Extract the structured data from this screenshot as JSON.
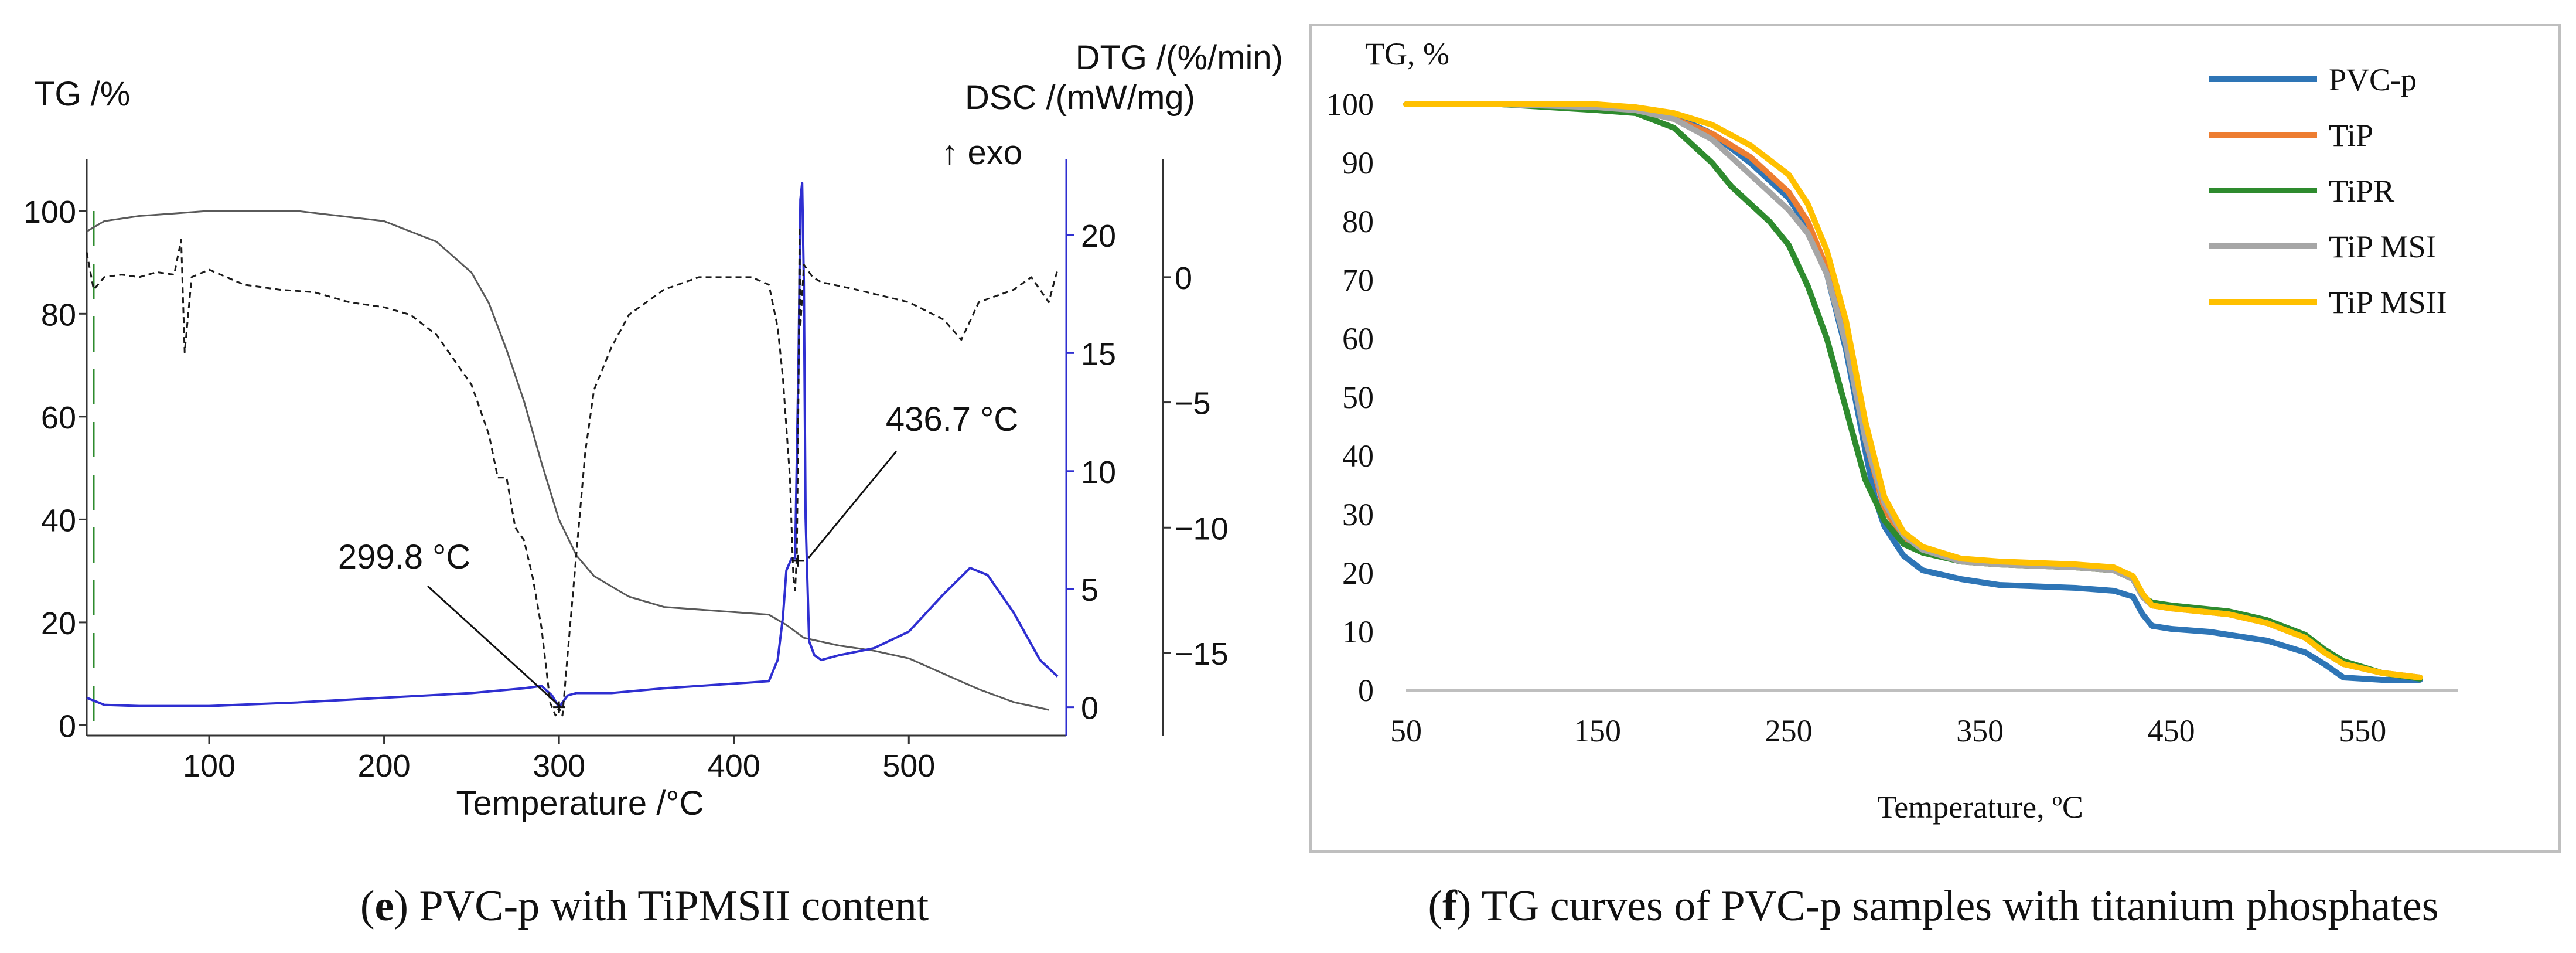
{
  "chart_data": [
    {
      "panel": "e",
      "type": "line",
      "title": "",
      "caption": {
        "letter": "e",
        "text": "PVC-p with TiPMSII content"
      },
      "xlabel": "Temperature /°C",
      "xlim": [
        30,
        590
      ],
      "xticks": [
        100,
        200,
        300,
        400,
        500
      ],
      "axes": {
        "tg": {
          "label": "TG /%",
          "lim": [
            -2,
            110
          ],
          "ticks": [
            0,
            20,
            40,
            60,
            80,
            100
          ]
        },
        "dsc": {
          "label": "DSC /(mW/mg)",
          "exo_label": "↑ exo",
          "lim": [
            -1.2,
            23.2
          ],
          "ticks": [
            0,
            5,
            10,
            15,
            20
          ]
        },
        "dtg": {
          "label": "DTG /(%/min)",
          "lim": [
            -18.3,
            4.7
          ],
          "ticks": [
            0,
            -5,
            -10,
            -15
          ]
        }
      },
      "series": [
        {
          "name": "TG",
          "axis": "tg",
          "color": "#5a5a5a",
          "dash": "",
          "x": [
            30,
            40,
            60,
            80,
            100,
            150,
            200,
            230,
            250,
            260,
            270,
            280,
            290,
            300,
            310,
            320,
            330,
            340,
            360,
            400,
            420,
            430,
            440,
            460,
            480,
            500,
            520,
            540,
            560,
            580
          ],
          "y": [
            96,
            98,
            99,
            99.5,
            100,
            100,
            98,
            94,
            88,
            82,
            73,
            63,
            51,
            40,
            33,
            29,
            27,
            25,
            23,
            22,
            21.5,
            19.5,
            17,
            15.5,
            14.5,
            13,
            10,
            7,
            4.5,
            3
          ]
        },
        {
          "name": "DSC",
          "axis": "dsc",
          "color": "#2f2fd1",
          "dash": "",
          "x": [
            30,
            40,
            60,
            100,
            150,
            200,
            250,
            280,
            290,
            296,
            300,
            305,
            310,
            330,
            360,
            400,
            420,
            425,
            428,
            430,
            433,
            435,
            437,
            438,
            439,
            440,
            441,
            443,
            446,
            450,
            460,
            480,
            500,
            520,
            535,
            545,
            560,
            575,
            585
          ],
          "y": [
            0.4,
            0.1,
            0.05,
            0.05,
            0.2,
            0.4,
            0.6,
            0.8,
            0.9,
            0.5,
            0.0,
            0.5,
            0.6,
            0.6,
            0.8,
            1.0,
            1.1,
            2.0,
            3.8,
            5.8,
            6.3,
            6.3,
            15,
            21.5,
            22.2,
            18,
            8,
            2.8,
            2.2,
            2.0,
            2.2,
            2.5,
            3.2,
            4.8,
            5.9,
            5.6,
            4.0,
            2.0,
            1.3
          ]
        },
        {
          "name": "DTG",
          "axis": "dtg",
          "color": "#1a1a1a",
          "dash": "10 7",
          "x": [
            30,
            34,
            40,
            50,
            60,
            70,
            80,
            84,
            86,
            90,
            100,
            120,
            140,
            160,
            180,
            200,
            215,
            230,
            240,
            250,
            260,
            265,
            270,
            275,
            280,
            285,
            290,
            295,
            298,
            300,
            302,
            305,
            310,
            315,
            320,
            330,
            340,
            360,
            380,
            400,
            410,
            420,
            425,
            428,
            430,
            432,
            433,
            434,
            435,
            436,
            437,
            437.5,
            438,
            440,
            445,
            450,
            470,
            500,
            520,
            530,
            540,
            560,
            570,
            580,
            585
          ],
          "y": [
            1,
            -0.5,
            0,
            0.1,
            0,
            0.2,
            0.1,
            1.5,
            -3,
            0,
            0.3,
            -0.3,
            -0.5,
            -0.6,
            -1,
            -1.2,
            -1.5,
            -2.3,
            -3.3,
            -4.3,
            -6.3,
            -8,
            -8,
            -10,
            -10.5,
            -12,
            -14,
            -17,
            -17.5,
            -17.2,
            -17.5,
            -15,
            -11,
            -7,
            -4.5,
            -2.8,
            -1.5,
            -0.5,
            0,
            0,
            0,
            -0.3,
            -2,
            -4,
            -6,
            -8,
            -10,
            -12,
            -12.5,
            -11,
            -4,
            2.0,
            -2,
            0.5,
            0,
            -0.2,
            -0.5,
            -1,
            -1.7,
            -2.5,
            -1,
            -0.5,
            0,
            -1,
            0.3
          ]
        }
      ],
      "annotations": [
        {
          "text": "299.8 °C",
          "x": 300,
          "axis": "dsc",
          "y": 0.0
        },
        {
          "text": "436.7 °C",
          "x": 436.7,
          "axis": "dsc",
          "y": 6.2
        }
      ]
    },
    {
      "panel": "f",
      "type": "line",
      "title": "",
      "caption": {
        "letter": "f",
        "text": "TG curves of PVC-p samples with titanium phosphates"
      },
      "xlabel": "Temperature, ºC",
      "ylabel": "TG, %",
      "xlim": [
        50,
        600
      ],
      "xticks": [
        50,
        150,
        250,
        350,
        450,
        550
      ],
      "ylim": [
        0,
        100
      ],
      "yticks": [
        0,
        10,
        20,
        30,
        40,
        50,
        60,
        70,
        80,
        90,
        100
      ],
      "grid": false,
      "legend_position": "top-right",
      "series": [
        {
          "name": "PVC-p",
          "color": "#2e75b6",
          "x": [
            50,
            100,
            150,
            170,
            190,
            210,
            230,
            250,
            260,
            270,
            280,
            290,
            295,
            300,
            310,
            320,
            340,
            360,
            400,
            420,
            430,
            435,
            440,
            450,
            470,
            500,
            520,
            530,
            540,
            560,
            580
          ],
          "y": [
            100,
            100,
            99.5,
            99,
            98,
            95,
            90,
            84,
            79,
            71,
            58,
            41,
            33,
            28,
            23,
            20.5,
            19,
            18,
            17.5,
            17,
            16,
            13,
            11,
            10.5,
            10,
            8.5,
            6.5,
            4.5,
            2.2,
            1.8,
            1.8
          ]
        },
        {
          "name": "TiP",
          "color": "#ed7d31",
          "x": [
            50,
            100,
            150,
            170,
            190,
            210,
            230,
            250,
            260,
            270,
            280,
            290,
            300,
            310,
            320,
            340,
            360,
            400,
            420,
            430,
            435,
            440,
            450,
            480,
            500,
            520,
            530,
            540,
            560,
            580
          ],
          "y": [
            100,
            100,
            99.5,
            99,
            97.5,
            95,
            91,
            85,
            80,
            72,
            60,
            43,
            31,
            26,
            24,
            22,
            21.5,
            21,
            20.5,
            19,
            16,
            14.5,
            14,
            13,
            11.5,
            9,
            6.5,
            4.5,
            3,
            2.2
          ]
        },
        {
          "name": "TiPR",
          "color": "#2e8b2e",
          "x": [
            50,
            100,
            150,
            170,
            190,
            210,
            220,
            230,
            240,
            250,
            260,
            270,
            280,
            290,
            300,
            310,
            320,
            340,
            360,
            400,
            420,
            430,
            435,
            440,
            450,
            480,
            500,
            520,
            530,
            540,
            560,
            580
          ],
          "y": [
            100,
            100,
            99,
            98.5,
            96,
            90,
            86,
            83,
            80,
            76,
            69,
            60,
            48,
            36,
            29,
            25,
            23.5,
            22,
            21.5,
            21,
            20.5,
            19,
            16,
            15,
            14.5,
            13.5,
            12,
            9.5,
            7,
            5,
            3,
            2
          ]
        },
        {
          "name": "TiP MSI",
          "color": "#a6a6a6",
          "x": [
            50,
            100,
            150,
            170,
            190,
            210,
            230,
            250,
            260,
            270,
            280,
            290,
            300,
            310,
            320,
            340,
            360,
            400,
            420,
            430,
            435,
            440,
            450,
            480,
            500,
            520,
            530,
            540,
            560,
            580
          ],
          "y": [
            100,
            100,
            99.5,
            99,
            97.5,
            94,
            88,
            82,
            78,
            71,
            59,
            43,
            32,
            26.5,
            24,
            22,
            21.5,
            21,
            20.5,
            19,
            16,
            14.5,
            14,
            13,
            11.5,
            9,
            6.5,
            4.5,
            3,
            2.2
          ]
        },
        {
          "name": "TiP MSII",
          "color": "#ffc000",
          "x": [
            50,
            100,
            150,
            170,
            190,
            210,
            230,
            250,
            260,
            270,
            280,
            290,
            300,
            310,
            320,
            340,
            360,
            400,
            420,
            430,
            435,
            440,
            450,
            480,
            500,
            520,
            530,
            540,
            560,
            580
          ],
          "y": [
            100,
            100,
            100,
            99.5,
            98.5,
            96.5,
            93,
            88,
            83,
            75,
            63,
            46,
            33,
            27,
            24.5,
            22.5,
            22,
            21.5,
            21,
            19.5,
            16.5,
            14.5,
            14,
            13,
            11.5,
            9,
            6.5,
            4.5,
            3,
            2.2
          ]
        }
      ]
    }
  ]
}
